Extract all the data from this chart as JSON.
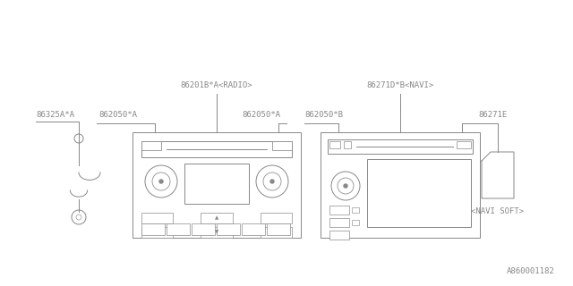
{
  "bg_color": "#ffffff",
  "line_color": "#888888",
  "text_color": "#888888",
  "title_bottom": "A860001182",
  "radio_label": "86201B*A<RADIO>",
  "navi_label": "86271D*B<NAVI>",
  "label_862050A_left": "862050*A",
  "label_862050A_right": "862050*A",
  "label_862050B": "862050*B",
  "label_86325A": "86325A*A",
  "label_86271E": "86271E",
  "label_navi_soft": "<NAVI SOFT>",
  "font_size": 6.5,
  "lw": 0.7
}
